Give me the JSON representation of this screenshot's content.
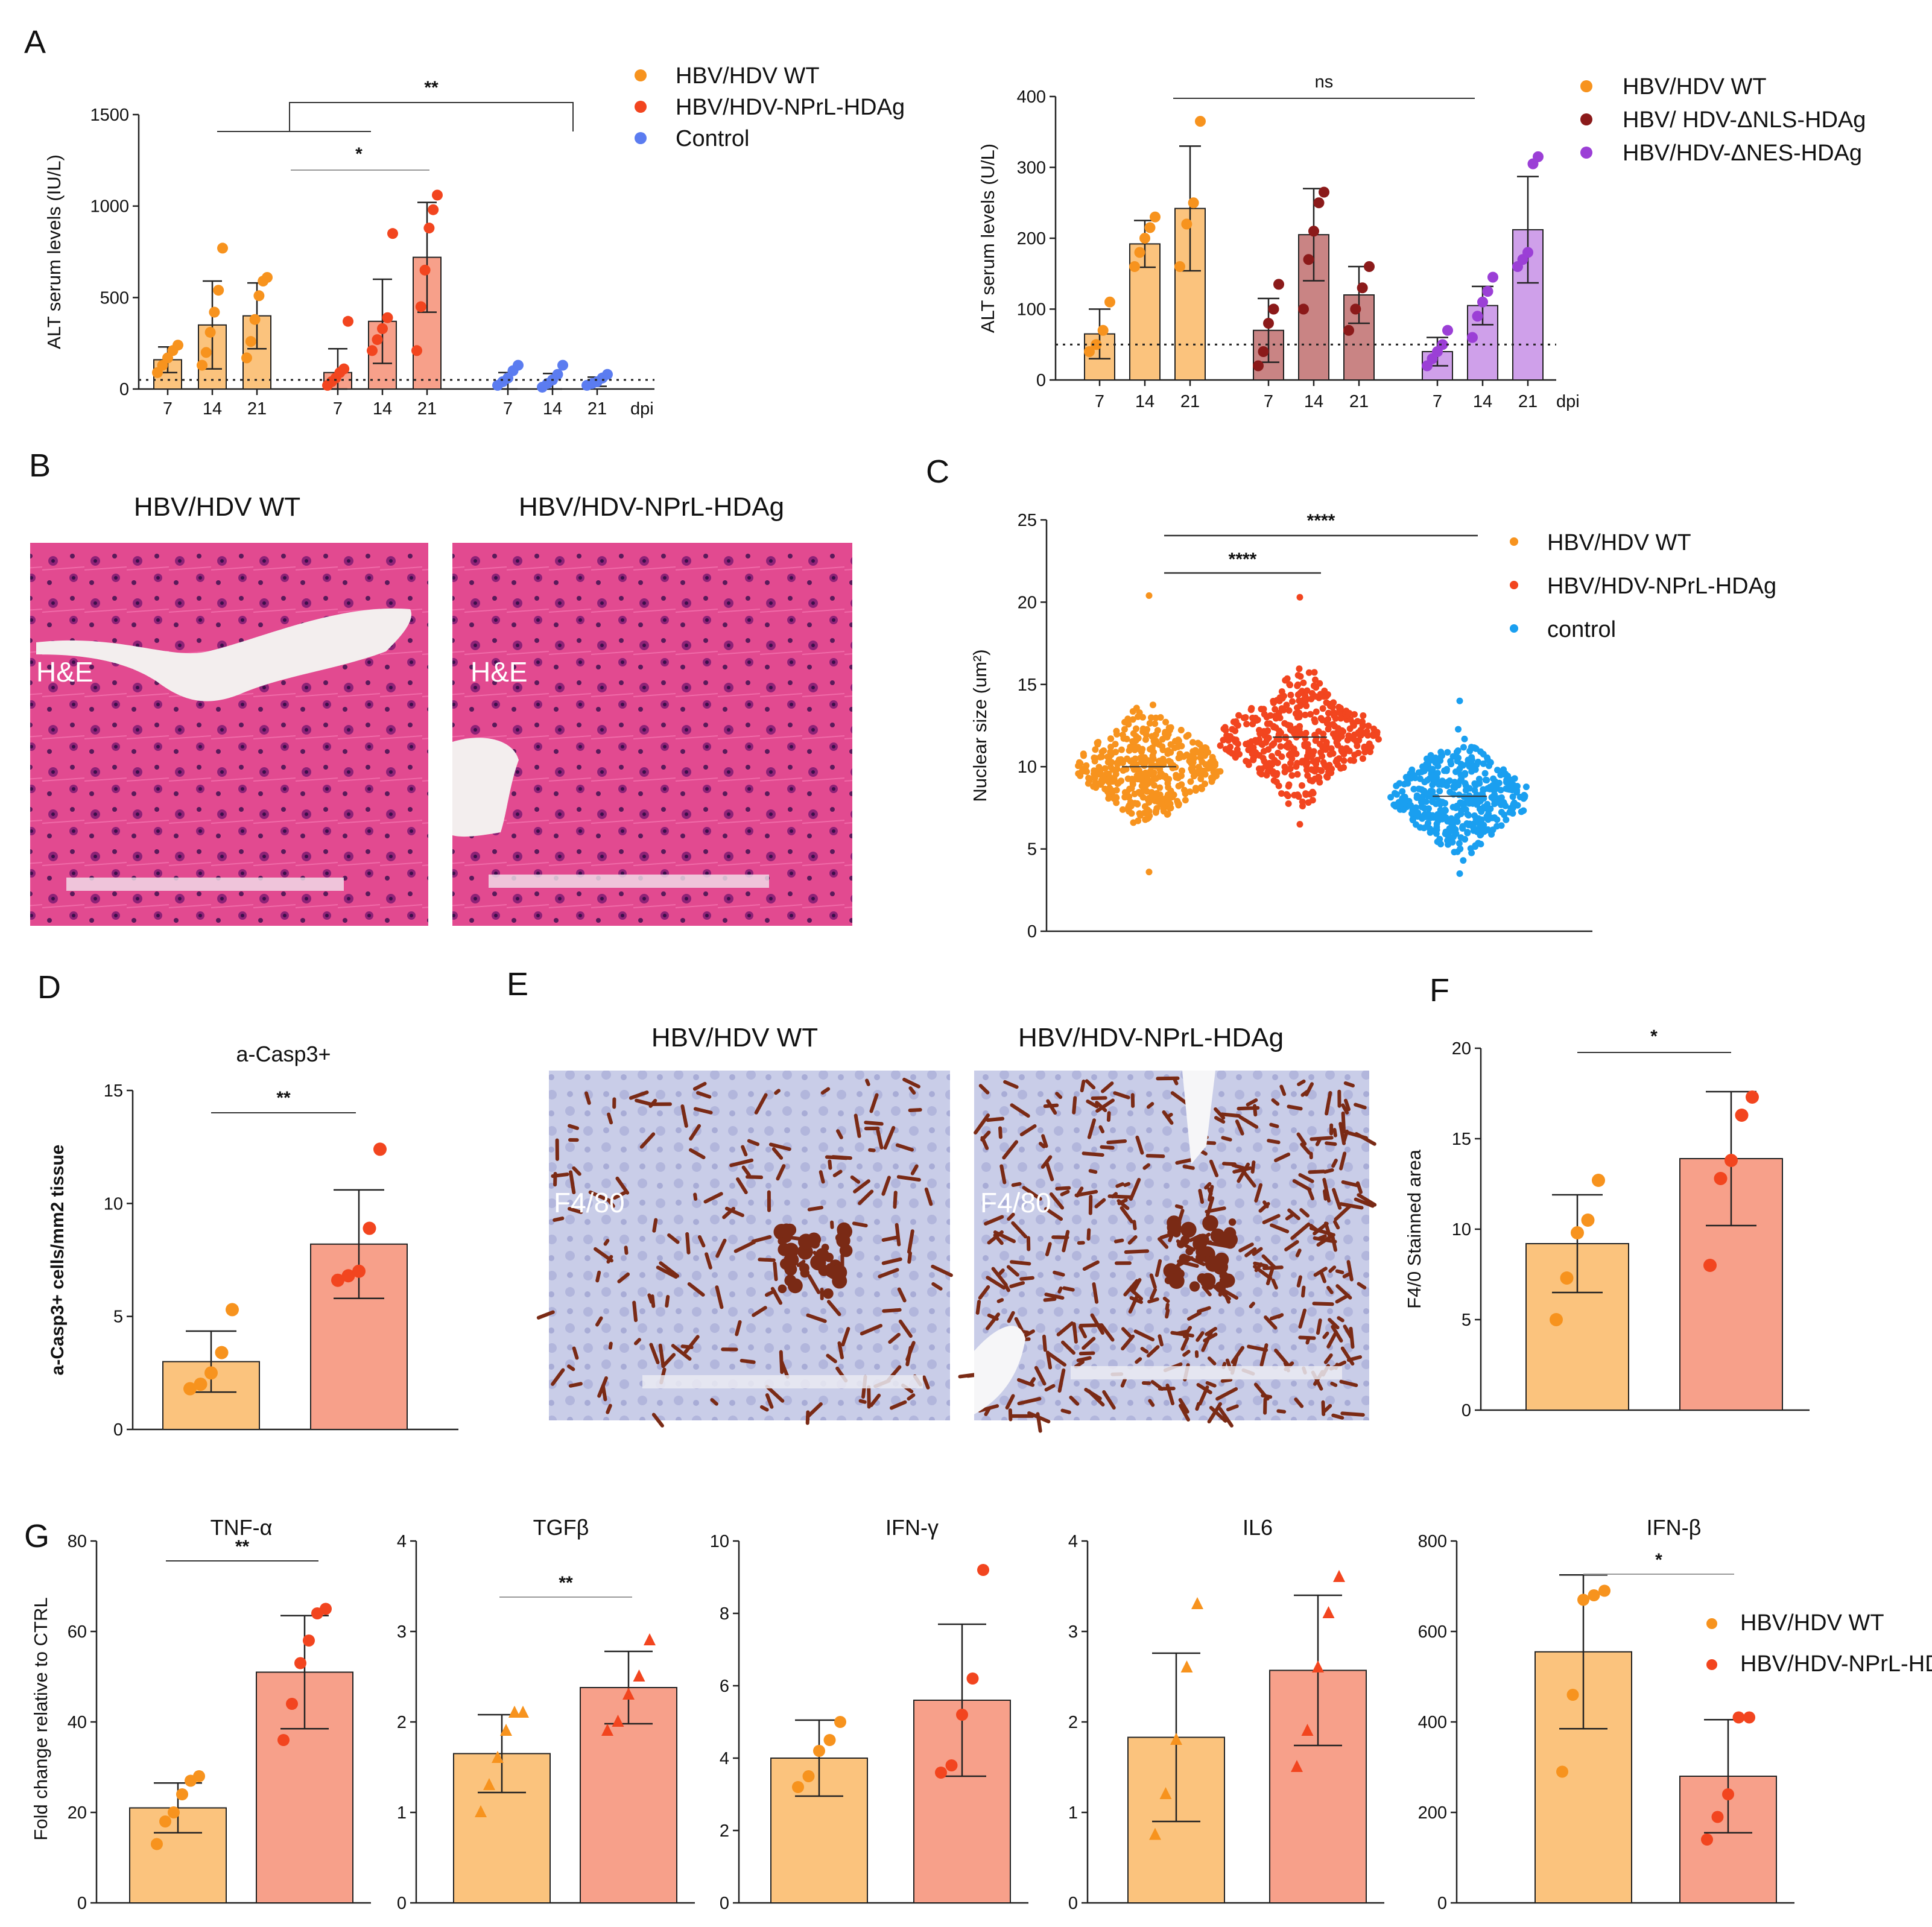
{
  "panels": {
    "A": {
      "letter": "A"
    },
    "B": {
      "letter": "B",
      "images": [
        {
          "title": "HBV/HDV WT",
          "stain": "H&E"
        },
        {
          "title": "HBV/HDV-NPrL-HDAg",
          "stain": "H&E"
        }
      ]
    },
    "C": {
      "letter": "C"
    },
    "D": {
      "letter": "D"
    },
    "E": {
      "letter": "E",
      "images": [
        {
          "title": "HBV/HDV WT",
          "stain": "F4/80"
        },
        {
          "title": "HBV/HDV-NPrL-HDAg",
          "stain": "F4/80"
        }
      ]
    },
    "F": {
      "letter": "F"
    },
    "G": {
      "letter": "G"
    }
  },
  "colors": {
    "wt_dot": "#f7931e",
    "wt_bar": "#fbc37d",
    "nprl_dot": "#f2451f",
    "nprl_bar": "#f7a08a",
    "ctrl_dot": "#5b7cf0",
    "ctrl_c": "#1a9ff0",
    "nls_dot": "#8b1a1a",
    "nls_bar": "#c98484",
    "nes_dot": "#9b3fd6",
    "nes_bar": "#cfa0ea",
    "he_tissue": "#e2488e",
    "ihc_tissue": "#c7cce6",
    "ihc_stain": "#7a2a15"
  },
  "chart_data": [
    {
      "id": "A1",
      "type": "bar",
      "ylabel": "ALT serum levels (IU/L)",
      "xunit": "dpi",
      "ylim": [
        0,
        1500
      ],
      "yticks": [
        "0",
        "500",
        "1000",
        "1500"
      ],
      "threshold": 50,
      "legend": [
        "HBV/HDV WT",
        "HBV/HDV-NPrL-HDAg",
        "Control"
      ],
      "groups": [
        {
          "name": "HBV/HDV WT",
          "bars": [
            {
              "label": "7",
              "mean": 160,
              "sd": 70,
              "points": [
                90,
                130,
                170,
                210,
                240
              ]
            },
            {
              "label": "14",
              "mean": 350,
              "sd": 240,
              "points": [
                130,
                200,
                310,
                420,
                540,
                770
              ]
            },
            {
              "label": "21",
              "mean": 400,
              "sd": 180,
              "points": [
                170,
                260,
                380,
                510,
                590,
                610
              ]
            }
          ]
        },
        {
          "name": "HBV/HDV-NPrL-HDAg",
          "bars": [
            {
              "label": "7",
              "mean": 90,
              "sd": 130,
              "points": [
                20,
                40,
                60,
                90,
                110,
                370
              ]
            },
            {
              "label": "14",
              "mean": 370,
              "sd": 230,
              "points": [
                210,
                270,
                330,
                390,
                850
              ]
            },
            {
              "label": "21",
              "mean": 720,
              "sd": 300,
              "points": [
                210,
                450,
                650,
                880,
                980,
                1060
              ]
            }
          ]
        },
        {
          "name": "Control",
          "bars": [
            {
              "label": "7",
              "mean": 40,
              "sd": 50,
              "points": [
                20,
                40,
                60,
                100,
                130
              ]
            },
            {
              "label": "14",
              "mean": 40,
              "sd": 45,
              "points": [
                10,
                30,
                50,
                80,
                130
              ]
            },
            {
              "label": "21",
              "mean": 40,
              "sd": 25,
              "points": [
                20,
                30,
                40,
                60,
                80
              ]
            }
          ]
        }
      ],
      "significance": [
        {
          "label": "**"
        },
        {
          "label": "*"
        }
      ]
    },
    {
      "id": "A2",
      "type": "bar",
      "ylabel": "ALT serum levels (U/L)",
      "xunit": "dpi",
      "ylim": [
        0,
        400
      ],
      "yticks": [
        "0",
        "100",
        "200",
        "300",
        "400"
      ],
      "threshold": 50,
      "legend": [
        "HBV/HDV WT",
        "HBV/ HDV-ΔNLS-HDAg",
        "HBV/HDV-ΔNES-HDAg"
      ],
      "groups": [
        {
          "name": "HBV/HDV WT",
          "bars": [
            {
              "label": "7",
              "mean": 65,
              "sd": 35,
              "points": [
                40,
                50,
                70,
                110
              ]
            },
            {
              "label": "14",
              "mean": 192,
              "sd": 33,
              "points": [
                160,
                180,
                200,
                215,
                230
              ]
            },
            {
              "label": "21",
              "mean": 242,
              "sd": 88,
              "points": [
                160,
                220,
                250,
                365
              ]
            }
          ]
        },
        {
          "name": "HBV/ HDV-ΔNLS-HDAg",
          "bars": [
            {
              "label": "7",
              "mean": 70,
              "sd": 45,
              "points": [
                20,
                40,
                80,
                100,
                135
              ]
            },
            {
              "label": "14",
              "mean": 205,
              "sd": 65,
              "points": [
                100,
                170,
                210,
                250,
                265
              ]
            },
            {
              "label": "21",
              "mean": 120,
              "sd": 40,
              "points": [
                70,
                100,
                130,
                160
              ]
            }
          ]
        },
        {
          "name": "HBV/HDV-ΔNES-HDAg",
          "bars": [
            {
              "label": "7",
              "mean": 40,
              "sd": 20,
              "points": [
                20,
                30,
                40,
                50,
                70
              ]
            },
            {
              "label": "14",
              "mean": 105,
              "sd": 27,
              "points": [
                60,
                90,
                110,
                125,
                145
              ]
            },
            {
              "label": "21",
              "mean": 212,
              "sd": 75,
              "points": [
                160,
                170,
                180,
                305,
                315
              ]
            }
          ]
        }
      ],
      "significance": [
        {
          "label": "ns"
        }
      ]
    },
    {
      "id": "C",
      "type": "scatter",
      "ylabel": "Nuclear size (um²)",
      "ylim": [
        0,
        25
      ],
      "yticks": [
        "0",
        "5",
        "10",
        "15",
        "20",
        "25"
      ],
      "legend": [
        "HBV/HDV WT",
        "HBV/HDV-NPrL-HDAg",
        "control"
      ],
      "groups": [
        {
          "name": "HBV/HDV WT",
          "median": 10.0,
          "min": 3.6,
          "max": 20.4
        },
        {
          "name": "HBV/HDV-NPrL-HDAg",
          "median": 11.8,
          "min": 6.5,
          "max": 20.3
        },
        {
          "name": "control",
          "median": 8.2,
          "min": 3.5,
          "max": 14.0
        }
      ],
      "significance": [
        {
          "label": "****"
        },
        {
          "label": "****"
        }
      ]
    },
    {
      "id": "D",
      "type": "bar",
      "title": "a-Casp3+",
      "ylabel": "a-Casp3+ cells/mm2 tissue",
      "ylim": [
        0,
        15
      ],
      "yticks": [
        "0",
        "5",
        "10",
        "15"
      ],
      "bars": [
        {
          "name": "HBV/HDV WT",
          "mean": 3.0,
          "sd": 1.35,
          "points": [
            1.8,
            2.0,
            2.5,
            3.4,
            5.3
          ]
        },
        {
          "name": "HBV/HDV-NPrL-HDAg",
          "mean": 8.2,
          "sd": 2.4,
          "points": [
            6.6,
            6.8,
            7.0,
            8.9,
            12.4
          ]
        }
      ],
      "significance": [
        {
          "label": "**"
        }
      ]
    },
    {
      "id": "F",
      "type": "bar",
      "ylabel": "F4/0 Stainned area",
      "ylim": [
        0,
        20
      ],
      "yticks": [
        "0",
        "5",
        "10",
        "15",
        "20"
      ],
      "bars": [
        {
          "name": "HBV/HDV WT",
          "mean": 9.2,
          "sd": 2.7,
          "points": [
            5.0,
            7.3,
            9.8,
            10.5,
            12.7
          ]
        },
        {
          "name": "HBV/HDV-NPrL-HDAg",
          "mean": 13.9,
          "sd": 3.7,
          "points": [
            8.0,
            12.8,
            13.8,
            16.3,
            17.3
          ]
        }
      ],
      "significance": [
        {
          "label": "*"
        }
      ]
    },
    {
      "id": "G",
      "type": "bar",
      "ylabel": "Fold change relative to CTRL",
      "legend": [
        "HBV/HDV WT",
        "HBV/HDV-NPrL-HDAg"
      ],
      "subcharts": [
        {
          "title": "TNF-α",
          "ylim": [
            0,
            80
          ],
          "yticks": [
            "0",
            "20",
            "40",
            "60",
            "80"
          ],
          "sig": "**",
          "marker": "circle",
          "bars": [
            {
              "mean": 21,
              "sd": 5.5,
              "points": [
                13,
                18,
                20,
                24,
                27,
                28
              ]
            },
            {
              "mean": 51,
              "sd": 12.5,
              "points": [
                36,
                44,
                53,
                58,
                64,
                65
              ]
            }
          ]
        },
        {
          "title": "TGFβ",
          "ylim": [
            0,
            4
          ],
          "yticks": [
            "0",
            "1",
            "2",
            "3",
            "4"
          ],
          "sig": "**",
          "marker": "triangle",
          "bars": [
            {
              "mean": 1.65,
              "sd": 0.43,
              "points": [
                1.0,
                1.3,
                1.6,
                1.9,
                2.1,
                2.1
              ]
            },
            {
              "mean": 2.38,
              "sd": 0.4,
              "points": [
                1.9,
                2.0,
                2.3,
                2.5,
                2.9
              ]
            }
          ]
        },
        {
          "title": "IFN-γ",
          "ylim": [
            0,
            10
          ],
          "yticks": [
            "0",
            "2",
            "4",
            "6",
            "8",
            "10"
          ],
          "sig": "",
          "marker": "circle",
          "bars": [
            {
              "mean": 4.0,
              "sd": 1.05,
              "points": [
                3.2,
                3.5,
                4.2,
                4.5,
                5.0
              ]
            },
            {
              "mean": 5.6,
              "sd": 2.1,
              "points": [
                3.6,
                3.8,
                5.2,
                6.2,
                9.2
              ]
            }
          ]
        },
        {
          "title": "IL6",
          "ylim": [
            0,
            4
          ],
          "yticks": [
            "0",
            "1",
            "2",
            "3",
            "4"
          ],
          "sig": "",
          "marker": "triangle",
          "bars": [
            {
              "mean": 1.83,
              "sd": 0.93,
              "points": [
                0.75,
                1.2,
                1.8,
                2.6,
                3.3
              ]
            },
            {
              "mean": 2.57,
              "sd": 0.83,
              "points": [
                1.5,
                1.9,
                2.6,
                3.2,
                3.6
              ]
            }
          ]
        },
        {
          "title": "IFN-β",
          "ylim": [
            0,
            800
          ],
          "yticks": [
            "0",
            "200",
            "400",
            "600",
            "800"
          ],
          "sig": "*",
          "marker": "circle",
          "bars": [
            {
              "mean": 555,
              "sd": 170,
              "points": [
                290,
                460,
                670,
                680,
                690
              ]
            },
            {
              "mean": 280,
              "sd": 125,
              "points": [
                140,
                190,
                240,
                410,
                410
              ]
            }
          ]
        }
      ]
    }
  ]
}
